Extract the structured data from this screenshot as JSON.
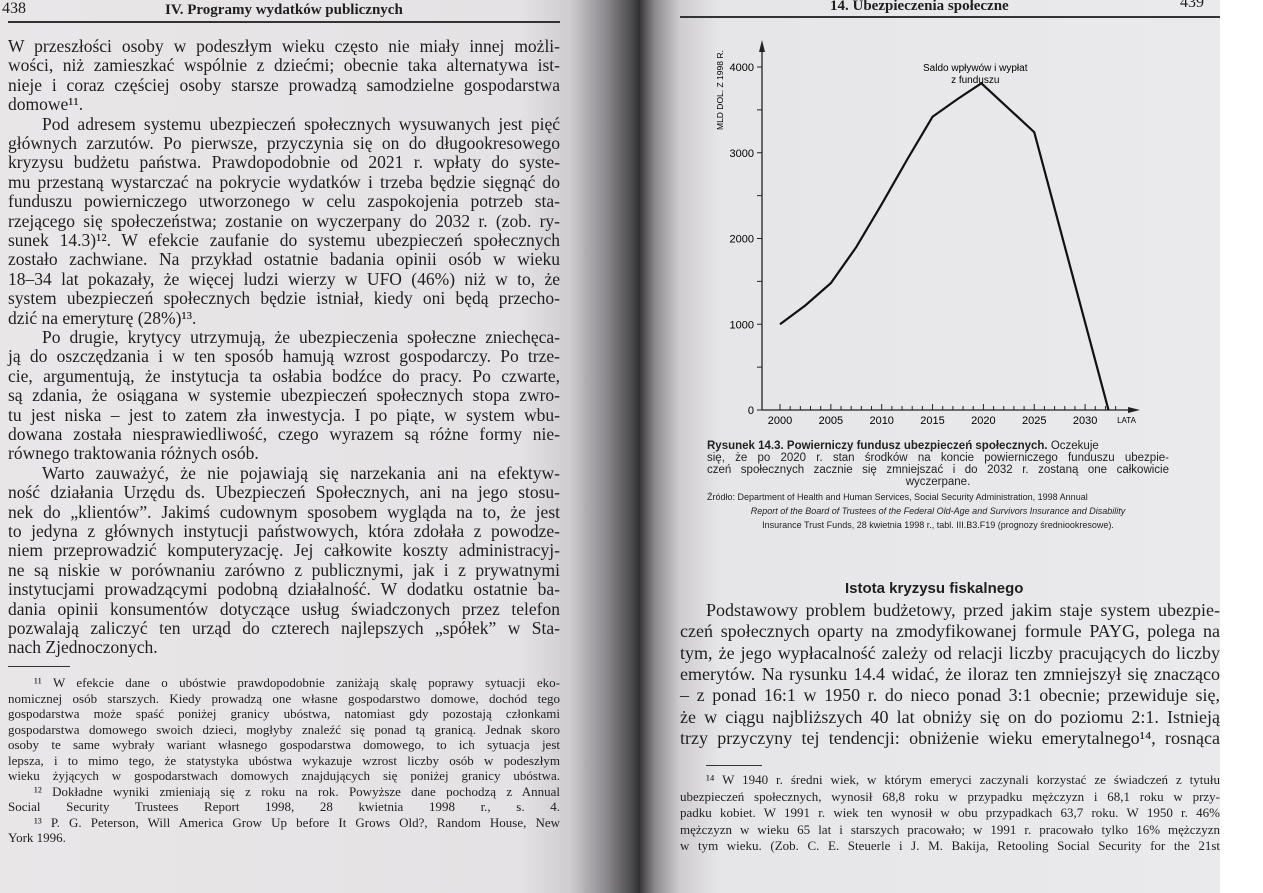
{
  "left_page": {
    "page_number": "438",
    "running_head": "IV. Programy wydatków publicznych",
    "body_lines": [
      "W przeszłości osoby w podeszłym wieku często nie miały innej możli-",
      "wości, niż zamieszkać wspólnie z dziećmi; obecnie taka alternatywa ist-",
      "nieje i coraz częściej osoby starsze prowadzą samodzielne gospodarstwa",
      "domowe¹¹.",
      "Pod adresem systemu ubezpieczeń społecznych wysuwanych jest pięć",
      "głównych zarzutów. Po pierwsze, przyczynia się on do długookresowego",
      "kryzysu budżetu państwa. Prawdopodobnie od 2021 r. wpłaty do syste-",
      "mu przestaną wystarczać na pokrycie wydatków i trzeba będzie sięgnąć do",
      "funduszu powierniczego utworzonego w celu zaspokojenia potrzeb sta-",
      "rzejącego się społeczeństwa; zostanie on wyczerpany do 2032 r. (zob. ry-",
      "sunek 14.3)¹². W efekcie zaufanie do systemu ubezpieczeń społecznych",
      "zostało zachwiane. Na przykład ostatnie badania opinii osób w wieku",
      "18–34 lat pokazały, że więcej ludzi wierzy w UFO (46%) niż w to, że",
      "system ubezpieczeń społecznych będzie istniał, kiedy oni będą przecho-",
      "dzić na emeryturę (28%)¹³.",
      "Po drugie, krytycy utrzymują, że ubezpieczenia społeczne zniechęca-",
      "ją do oszczędzania i w ten sposób hamują wzrost gospodarczy. Po trze-",
      "cie, argumentują, że instytucja ta osłabia bodźce do pracy. Po czwarte,",
      "są zdania, że osiągana w systemie ubezpieczeń społecznych stopa zwro-",
      "tu jest niska – jest to zatem zła inwestycja. I po piąte, w system wbu-",
      "dowana została niesprawiedliwość, czego wyrazem są różne formy nie-",
      "równego traktowania różnych osób.",
      "Warto zauważyć, że nie pojawiają się narzekania ani na efektyw-",
      "ność działania Urzędu ds. Ubezpieczeń Społecznych, ani na jego stosu-",
      "nek do „klientów”. Jakimś cudownym sposobem wygląda na to, że jest",
      "to jedyna z głównych instytucji państwowych, która zdołała z powodze-",
      "niem przeprowadzić komputeryzację. Jej całkowite koszty administracyj-",
      "ne są niskie w porównaniu zarówno z publicznymi, jak i z prywatnymi",
      "instytucjami prowadzącymi podobną działalność. W dodatku ostatnie ba-",
      "dania opinii konsumentów dotyczące usług świadczonych przez telefon",
      "pozwalają zaliczyć ten urząd do czterech najlepszych „spółek” w Sta-",
      "nach Zjednoczonych."
    ],
    "footnote_lines": [
      "¹¹ W efekcie dane o ubóstwie prawdopodobnie zaniżają skalę poprawy sytuacji eko-",
      "nomicznej osób starszych. Kiedy prowadzą one własne gospodarstwo domowe, dochód tego",
      "gospodarstwa może spaść poniżej granicy ubóstwa, natomiast gdy pozostają członkami",
      "gospodarstwa domowego swoich dzieci, mogłyby znaleźć się ponad tą granicą. Jednak skoro",
      "osoby te same wybrały wariant własnego gospodarstwa domowego, to ich sytuacja jest",
      "lepsza, i to mimo tego, że statystyka ubóstwa wykazuje wzrost liczby osób w podeszłym",
      "wieku żyjących w gospodarstwach domowych znajdujących się poniżej granicy ubóstwa.",
      "¹² Dokładne wyniki zmieniają się z roku na rok. Powyższe dane pochodzą z Annual",
      "Social Security Trustees Report 1998, 28 kwietnia 1998 r., s. 4.",
      "¹³ P. G. Peterson, Will America Grow Up before It Grows Old?, Random House, New",
      "York 1996."
    ]
  },
  "right_page": {
    "page_number": "439",
    "running_head": "14. Ubezpieczenia społeczne",
    "caption_lines": [
      "Rysunek 14.3. Powierniczy fundusz ubezpieczeń społecznych.",
      " Oczekuje",
      "się, że po 2020 r. stan środków na koncie powierniczego funduszu ubezpie-",
      "czeń społecznych zacznie się zmniejszać i do 2032 r. zostaną one całkowicie",
      "wyczerpane."
    ],
    "source_lines": [
      "Źródło: Department of Health and Human Services, Social Security Administration, 1998 Annual",
      "Report of the Board of Trustees of the Federal Old-Age and Survivors Insurance and Disability",
      "Insurance Trust Funds, 28 kwietnia 1998 r., tabl. III.B3.F19 (prognozy średniookresowe)."
    ],
    "section_heading": "Istota kryzysu fiskalnego",
    "body_lines": [
      "Podstawowy problem budżetowy, przed jakim staje system ubezpie-",
      "czeń społecznych oparty na zmodyfikowanej formule PAYG, polega na",
      "tym, że jego wypłacalność zależy od relacji liczby pracujących do liczby",
      "emerytów. Na rysunku 14.4 widać, że iloraz ten zmniejszył się znacząco",
      "– z ponad 16:1 w 1950 r. do nieco ponad 3:1 obecnie; przewiduje się,",
      "że w ciągu najbliższych 40 lat obniży się on do poziomu 2:1. Istnieją",
      "trzy przyczyny tej tendencji: obniżenie wieku emerytalnego¹⁴, rosnąca"
    ],
    "footnote_lines": [
      "¹⁴ W 1940 r. średni wiek, w którym emeryci zaczynali korzystać ze świadczeń z tytułu",
      "ubezpieczeń społecznych, wynosił 68,8 roku w przypadku mężczyzn i 68,1 roku w przy-",
      "padku kobiet. W 1991 r. wiek ten wynosił w obu przypadkach 63,7 roku. W 1950 r. 46%",
      "mężczyzn w wieku 65 lat i starszych pracowało; w 1991 r. pracowało tylko 16% mężczyzn",
      "w tym wieku. (Zob. C. E. Steuerle i J. M. Bakija, Retooling Social Security for the 21st"
    ]
  },
  "chart_data": {
    "type": "line",
    "ylabel": "MLD DOL. Z 1998 R.",
    "xlabel": "LATA",
    "annotation": "Saldo wpływów i wypłat z funduszu",
    "annotation_lines": [
      "Saldo wpływów i wypłat",
      "z funduszu"
    ],
    "x_ticks": [
      "2000",
      "2005",
      "2010",
      "2015",
      "2020",
      "2025",
      "2030"
    ],
    "y_ticks": [
      "0",
      "1000",
      "2000",
      "3000",
      "4000"
    ],
    "xlim": [
      1998,
      2036
    ],
    "ylim": [
      0,
      4300
    ],
    "grid": false,
    "x": [
      2000,
      2002.5,
      2005,
      2007.5,
      2010,
      2012.5,
      2015,
      2017.5,
      2019.8,
      2025,
      2032.3
    ],
    "y": [
      1000,
      1220,
      1480,
      1900,
      2400,
      2920,
      3420,
      3630,
      3810,
      3240,
      0
    ],
    "line_color": "#111111"
  }
}
